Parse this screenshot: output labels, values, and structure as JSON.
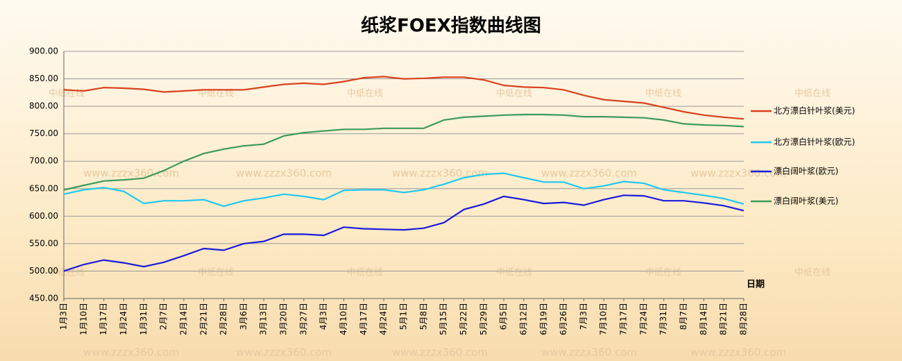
{
  "chart_data": {
    "type": "line",
    "title": "纸浆FOEX指数曲线图",
    "x_label": "日期",
    "categories": [
      "1月3日",
      "1月10日",
      "1月17日",
      "1月24日",
      "1月31日",
      "2月7日",
      "2月14日",
      "2月21日",
      "2月28日",
      "3月6日",
      "3月13日",
      "3月20日",
      "3月27日",
      "4月3日",
      "4月10日",
      "4月17日",
      "4月24日",
      "5月1日",
      "5月8日",
      "5月15日",
      "5月22日",
      "5月29日",
      "6月5日",
      "6月12日",
      "6月19日",
      "6月26日",
      "7月3日",
      "7月10日",
      "7月17日",
      "7月24日",
      "7月31日",
      "8月7日",
      "8月14日",
      "8月21日",
      "8月28日"
    ],
    "series": [
      {
        "name": "北方漂白针叶浆(美元)",
        "color": "#d9411e",
        "values": [
          830,
          828,
          834,
          833,
          831,
          826,
          828,
          830,
          830,
          830,
          835,
          840,
          842,
          840,
          845,
          852,
          854,
          850,
          851,
          853,
          853,
          848,
          838,
          835,
          834,
          830,
          820,
          812,
          809,
          806,
          798,
          790,
          784,
          780,
          777
        ]
      },
      {
        "name": "北方漂白针叶浆(欧元)",
        "color": "#1ec8f0",
        "values": [
          640,
          648,
          652,
          645,
          623,
          628,
          628,
          630,
          618,
          628,
          633,
          640,
          636,
          630,
          647,
          648,
          648,
          643,
          648,
          658,
          670,
          676,
          678,
          670,
          662,
          662,
          650,
          655,
          663,
          660,
          648,
          643,
          638,
          632,
          622
        ]
      },
      {
        "name": "漂白阔叶浆(欧元)",
        "color": "#1a1adc",
        "values": [
          500,
          512,
          520,
          515,
          508,
          516,
          528,
          541,
          538,
          550,
          554,
          567,
          567,
          565,
          580,
          577,
          576,
          575,
          578,
          588,
          612,
          622,
          636,
          630,
          623,
          625,
          620,
          630,
          638,
          637,
          628,
          628,
          624,
          619,
          610
        ]
      },
      {
        "name": "漂白阔叶浆(美元)",
        "color": "#3c9a5a",
        "values": [
          648,
          656,
          664,
          666,
          669,
          683,
          700,
          714,
          722,
          728,
          731,
          746,
          752,
          755,
          758,
          758,
          760,
          760,
          760,
          775,
          780,
          782,
          784,
          785,
          785,
          784,
          781,
          781,
          780,
          779,
          775,
          768,
          766,
          765,
          763
        ]
      }
    ],
    "ylim": [
      450,
      900
    ],
    "yticks": [
      {
        "value": 450,
        "label": "450.00"
      },
      {
        "value": 500,
        "label": "500.00"
      },
      {
        "value": 550,
        "label": "550.00"
      },
      {
        "value": 600,
        "label": "600.00"
      },
      {
        "value": 650,
        "label": "650.00"
      },
      {
        "value": 700,
        "label": "700.00"
      },
      {
        "value": 750,
        "label": "750.00"
      },
      {
        "value": 800,
        "label": "800.00"
      },
      {
        "value": 850,
        "label": "850.00"
      },
      {
        "value": 900,
        "label": "900.00"
      }
    ],
    "grid": true,
    "legend": "right",
    "watermarks": [
      "中纸在线",
      "www.zzzx360.com"
    ]
  }
}
